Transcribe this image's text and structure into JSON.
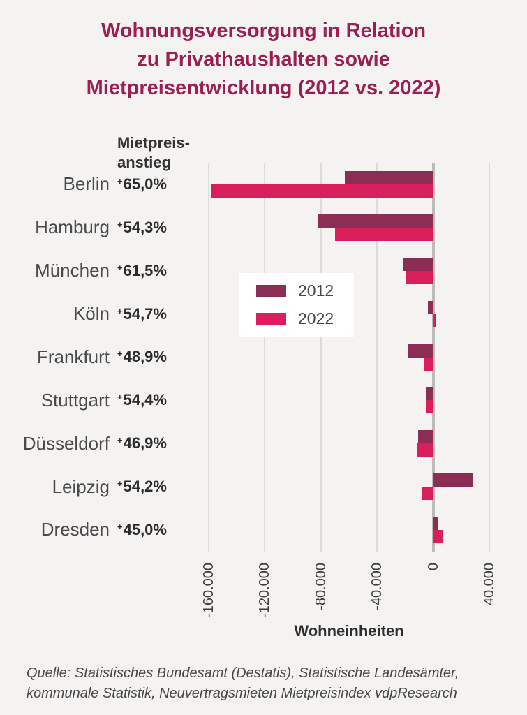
{
  "title": {
    "lines": [
      "Wohnungsversorgung in Relation",
      "zu Privathaushalten sowie",
      "Mietpreisentwicklung (2012 vs. 2022)"
    ]
  },
  "column_header": {
    "line1": "Mietpreis-",
    "line2": "anstieg"
  },
  "source": {
    "lines": [
      "Quelle: Statistisches Bundesamt (Destatis), Statistische Landesämter,",
      "kommunale Statistik, Neuvertragsmieten Mietpreisindex vdpResearch"
    ]
  },
  "colors": {
    "background": "#f4f3f2",
    "title": "#9a1f53",
    "bar_2012": "#8b2d55",
    "bar_2022": "#d81e5b",
    "gridline": "#dcdbda",
    "zero_line": "#bcbbba",
    "legend_background": "#ffffff"
  },
  "chart_data": {
    "type": "bar",
    "orientation": "horizontal",
    "title": "Wohnungsversorgung in Relation zu Privathaushalten sowie Mietpreisentwicklung (2012 vs. 2022)",
    "categories": [
      "Berlin",
      "Hamburg",
      "München",
      "Köln",
      "Frankfurt",
      "Stuttgart",
      "Düsseldorf",
      "Leipzig",
      "Dresden"
    ],
    "rent_increase": [
      "+65,0%",
      "+54,3%",
      "+61,5%",
      "+54,7%",
      "+48,9%",
      "+54,4%",
      "+46,9%",
      "+54,2%",
      "+45,0%"
    ],
    "plus_sign": "+",
    "series": [
      {
        "name": "2012",
        "color": "#8b2d55",
        "values": [
          -63000,
          -82000,
          -21000,
          -4000,
          -18000,
          -5000,
          -11000,
          28000,
          3500
        ]
      },
      {
        "name": "2022",
        "color": "#d81e5b",
        "values": [
          -158000,
          -70000,
          -19000,
          1500,
          -6500,
          -5500,
          -11500,
          -8500,
          7000
        ]
      }
    ],
    "xlabel": "Wohneinheiten",
    "xlim": [
      -165000,
      45000
    ],
    "xticks": [
      -160000,
      -120000,
      -80000,
      -40000,
      0,
      40000
    ],
    "xtick_labels": [
      "-160.000",
      "-120.000",
      "-80.000",
      "-40.000",
      "0",
      "40.000"
    ],
    "grid": "vertical-gridlines",
    "legend_position": "inside-left-middle",
    "legend_labels": [
      "2012",
      "2022"
    ]
  }
}
